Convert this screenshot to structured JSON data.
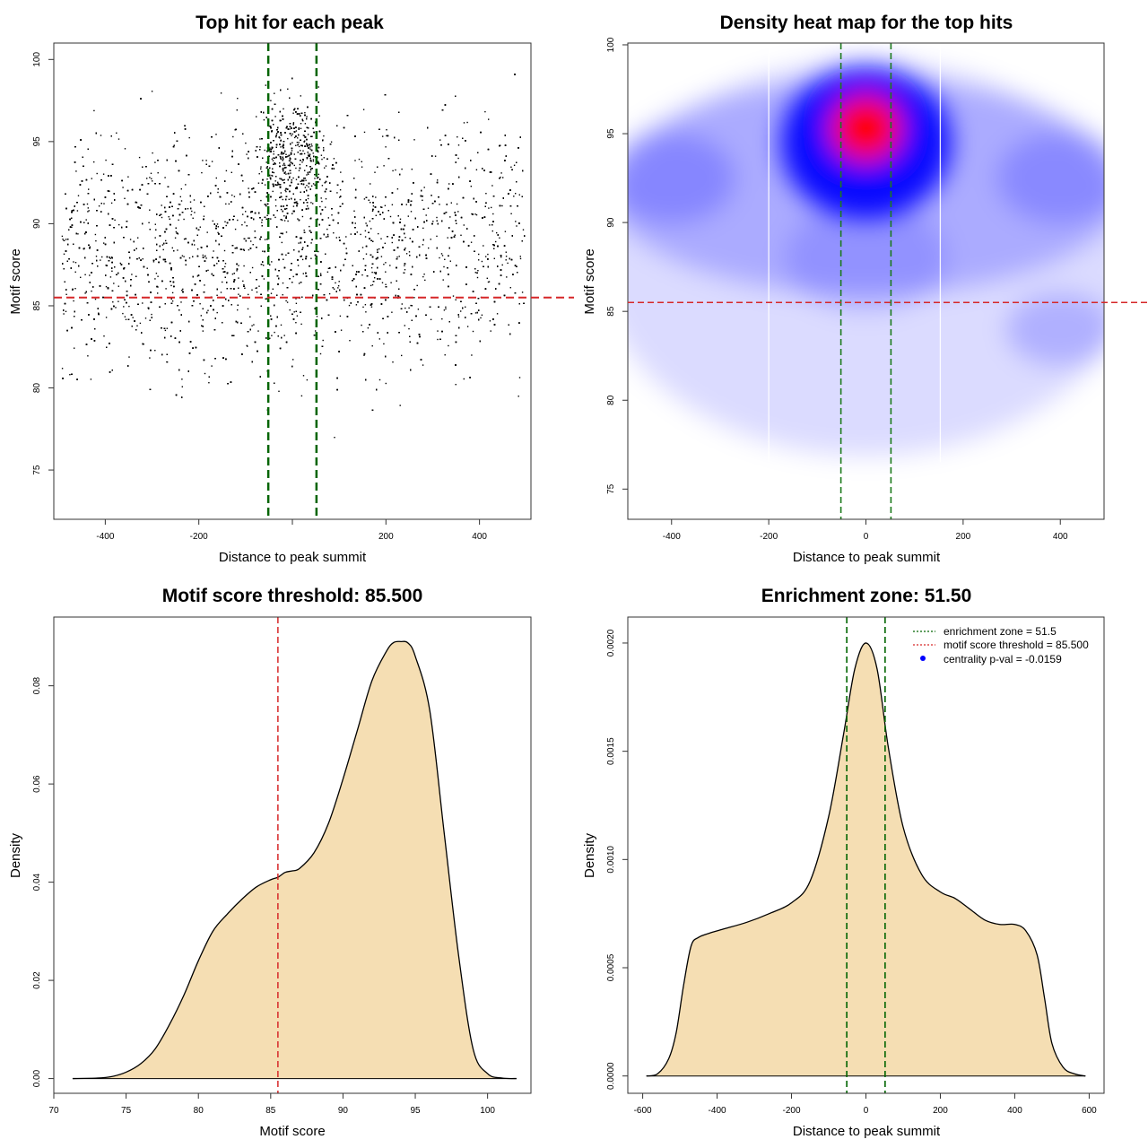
{
  "chart_data": [
    {
      "type": "scatter",
      "title": "Top hit for each peak",
      "xlabel": "Distance to peak summit",
      "ylabel": "Motif score",
      "xlim": [
        -510,
        510
      ],
      "ylim": [
        72,
        101
      ],
      "xticks": [
        -400,
        -200,
        0,
        200,
        400
      ],
      "xtick_labels": [
        "-400",
        "-200",
        "",
        "200",
        "400"
      ],
      "yticks": [
        75,
        80,
        85,
        90,
        95,
        100
      ],
      "ytick_labels": [
        "75",
        "80",
        "85",
        "90",
        "95",
        "100"
      ],
      "threshold": 85.5,
      "zone": [
        -51.5,
        51.5
      ],
      "point_count": 9000,
      "point_color": "#000000",
      "threshold_color": "#d62728",
      "zone_color": "#006400"
    },
    {
      "type": "heatmap",
      "title": "Density heat map for the top hits",
      "xlabel": "Distance to peak summit",
      "ylabel": "Motif score",
      "xlim": [
        -490,
        490
      ],
      "ylim": [
        73.3,
        100.1
      ],
      "xticks": [
        -400,
        -200,
        0,
        200,
        400
      ],
      "xtick_labels": [
        "-400",
        "-200",
        "0",
        "200",
        "400"
      ],
      "yticks": [
        75,
        80,
        85,
        90,
        95,
        100
      ],
      "ytick_labels": [
        "75",
        "80",
        "85",
        "90",
        "95",
        "100"
      ],
      "peak": {
        "x": 0,
        "y": 95.3
      },
      "threshold": 85.5,
      "zone": [
        -51.5,
        51.5
      ],
      "gridlines_x": [
        -200,
        153
      ],
      "colors": {
        "low": "#ffffff",
        "mid": "#0000ff",
        "high": "#ff0000"
      }
    },
    {
      "type": "area",
      "title": "Motif score threshold: 85.500",
      "xlabel": "Motif score",
      "ylabel": "Density",
      "xlim": [
        70,
        103
      ],
      "ylim": [
        -0.003,
        0.094
      ],
      "xticks": [
        70,
        75,
        80,
        85,
        90,
        95,
        100
      ],
      "xtick_labels": [
        "70",
        "75",
        "80",
        "85",
        "90",
        "95",
        "100"
      ],
      "yticks": [
        0,
        0.02,
        0.04,
        0.06,
        0.08
      ],
      "ytick_labels": [
        "0.00",
        "0.02",
        "0.04",
        "0.06",
        "0.08"
      ],
      "x": [
        71.3,
        73,
        74,
        75,
        76,
        77,
        78,
        79,
        80,
        81,
        82,
        83,
        84,
        85,
        85.5,
        86,
        86.5,
        87,
        88,
        89,
        90,
        91,
        92,
        93,
        93.5,
        94,
        94.5,
        95,
        96,
        97,
        98,
        99,
        100,
        101,
        102
      ],
      "y": [
        0,
        0.0001,
        0.0004,
        0.0013,
        0.003,
        0.006,
        0.011,
        0.017,
        0.024,
        0.03,
        0.0335,
        0.0365,
        0.039,
        0.0405,
        0.041,
        0.042,
        0.0423,
        0.0428,
        0.046,
        0.052,
        0.061,
        0.071,
        0.081,
        0.087,
        0.0888,
        0.089,
        0.0887,
        0.086,
        0.075,
        0.05,
        0.025,
        0.006,
        0.001,
        0.0001,
        0
      ],
      "threshold": 85.5,
      "fill_color": "#f5deb3",
      "threshold_color": "#d62728"
    },
    {
      "type": "area",
      "title": "Enrichment zone: 51.50",
      "xlabel": "Distance to peak summit",
      "ylabel": "Density",
      "xlim": [
        -640,
        640
      ],
      "ylim": [
        -8e-05,
        0.00212
      ],
      "xticks": [
        -600,
        -400,
        -200,
        0,
        200,
        400,
        600
      ],
      "xtick_labels": [
        "-600",
        "-400",
        "-200",
        "0",
        "200",
        "400",
        "600"
      ],
      "yticks": [
        0,
        0.0005,
        0.001,
        0.0015,
        0.002
      ],
      "ytick_labels": [
        "0.0000",
        "0.0005",
        "0.0010",
        "0.0015",
        "0.0020"
      ],
      "x": [
        -590,
        -560,
        -530,
        -510,
        -490,
        -470,
        -450,
        -420,
        -380,
        -320,
        -260,
        -200,
        -150,
        -100,
        -60,
        -30,
        0,
        30,
        60,
        100,
        150,
        200,
        240,
        280,
        320,
        360,
        400,
        430,
        460,
        480,
        500,
        530,
        560,
        590
      ],
      "y": [
        0,
        1e-05,
        8e-05,
        0.0002,
        0.00042,
        0.0006,
        0.00064,
        0.00066,
        0.00068,
        0.00071,
        0.00075,
        0.0008,
        0.0009,
        0.0012,
        0.00158,
        0.00188,
        0.002,
        0.00188,
        0.00152,
        0.00115,
        0.00093,
        0.00085,
        0.00082,
        0.00077,
        0.00072,
        0.0007,
        0.0007,
        0.00067,
        0.00056,
        0.00036,
        0.00015,
        4e-05,
        1e-05,
        0
      ],
      "zone": [
        -51.5,
        51.5
      ],
      "fill_color": "#f5deb3",
      "zone_color": "#006400",
      "legend": [
        {
          "label": "enrichment zone = 51.5",
          "style": "dotted",
          "color": "#006400"
        },
        {
          "label": "motif score threshold = 85.500",
          "style": "dotted",
          "color": "#d62728"
        },
        {
          "label": "centrality p-val = -0.0159",
          "style": "point",
          "color": "#0000ff"
        }
      ]
    }
  ]
}
